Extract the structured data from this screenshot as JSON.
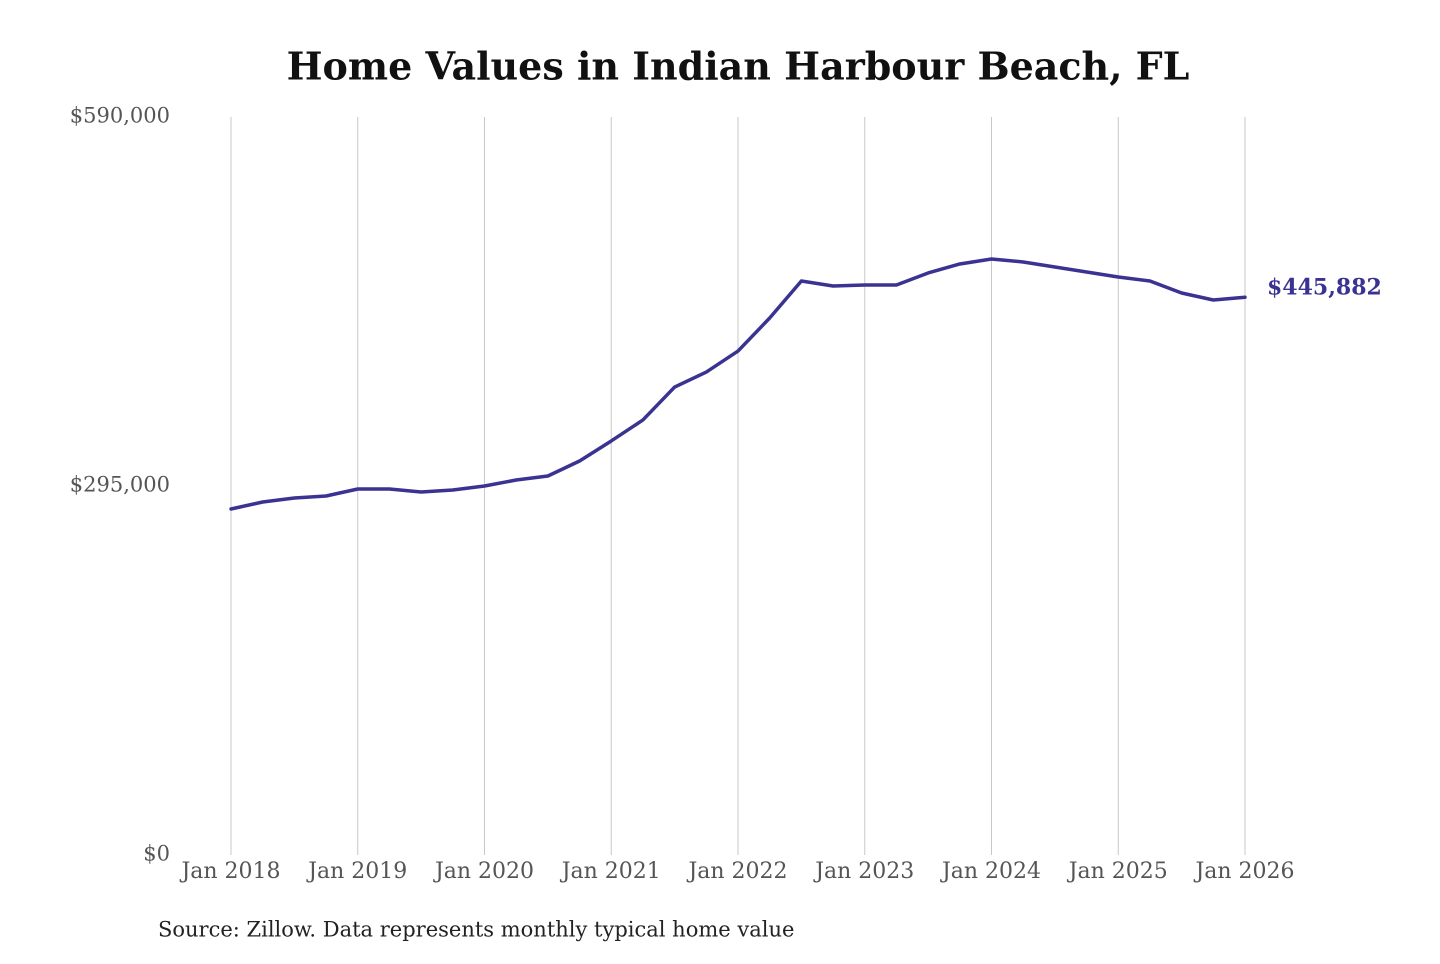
{
  "chart_data": {
    "type": "line",
    "title": "Home Values in Indian Harbour Beach, FL",
    "source": "Source: Zillow. Data represents monthly typical home value",
    "x": [
      "2018-01",
      "2018-04",
      "2018-07",
      "2018-10",
      "2019-01",
      "2019-04",
      "2019-07",
      "2019-10",
      "2020-01",
      "2020-04",
      "2020-07",
      "2020-10",
      "2021-01",
      "2021-04",
      "2021-07",
      "2021-10",
      "2022-01",
      "2022-04",
      "2022-07",
      "2022-10",
      "2023-01",
      "2023-04",
      "2023-07",
      "2023-10",
      "2024-01",
      "2024-04",
      "2024-07",
      "2024-10",
      "2025-01",
      "2025-04",
      "2025-07",
      "2025-10",
      "2026-01"
    ],
    "series": [
      {
        "name": "Home value",
        "color": "#3a3391",
        "values": [
          276600,
          282200,
          285400,
          287000,
          292600,
          292600,
          290200,
          291800,
          295000,
          299800,
          303000,
          315000,
          331000,
          347800,
          374100,
          386100,
          402900,
          429300,
          458900,
          454900,
          455700,
          455700,
          465300,
          472500,
          476500,
          474100,
          470100,
          466100,
          462100,
          458900,
          449300,
          443700,
          445882
        ],
        "value_labels": [
          null,
          null,
          null,
          null,
          null,
          null,
          null,
          null,
          null,
          null,
          null,
          null,
          null,
          null,
          null,
          null,
          null,
          null,
          null,
          null,
          null,
          null,
          null,
          null,
          null,
          null,
          null,
          null,
          null,
          null,
          null,
          null,
          "$445,882"
        ]
      }
    ],
    "xlim": [
      "2018-01",
      "2026-01"
    ],
    "xticks": [
      {
        "value": "2018-01",
        "label": "Jan 2018"
      },
      {
        "value": "2019-01",
        "label": "Jan 2019"
      },
      {
        "value": "2020-01",
        "label": "Jan 2020"
      },
      {
        "value": "2021-01",
        "label": "Jan 2021"
      },
      {
        "value": "2022-01",
        "label": "Jan 2022"
      },
      {
        "value": "2023-01",
        "label": "Jan 2023"
      },
      {
        "value": "2024-01",
        "label": "Jan 2024"
      },
      {
        "value": "2025-01",
        "label": "Jan 2025"
      },
      {
        "value": "2026-01",
        "label": "Jan 2026"
      }
    ],
    "ylim": [
      0,
      590000
    ],
    "yticks": [
      {
        "value": 0,
        "label": "$0"
      },
      {
        "value": 295000,
        "label": "$295,000"
      },
      {
        "value": 590000,
        "label": "$590,000"
      }
    ],
    "grid": "x"
  }
}
